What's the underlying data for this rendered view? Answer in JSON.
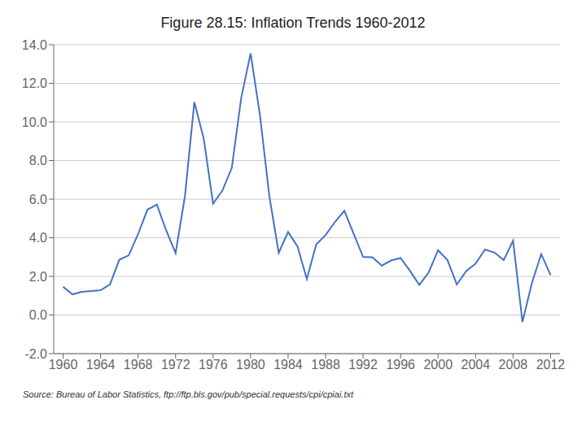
{
  "chart_data": {
    "type": "line",
    "title": "Figure 28.15: Inflation Trends 1960-2012",
    "annotations": [
      "Source: Bureau of Labor Statistics, ftp://ftp.bls.gov/pub/special.requests/cpi/cpiai.txt"
    ],
    "x": [
      1960,
      1961,
      1962,
      1963,
      1964,
      1965,
      1966,
      1967,
      1968,
      1969,
      1970,
      1971,
      1972,
      1973,
      1974,
      1975,
      1976,
      1977,
      1978,
      1979,
      1980,
      1981,
      1982,
      1983,
      1984,
      1985,
      1986,
      1987,
      1988,
      1989,
      1990,
      1991,
      1992,
      1993,
      1994,
      1995,
      1996,
      1997,
      1998,
      1999,
      2000,
      2001,
      2002,
      2003,
      2004,
      2005,
      2006,
      2007,
      2008,
      2009,
      2010,
      2011,
      2012
    ],
    "values": [
      1.46,
      1.07,
      1.2,
      1.24,
      1.28,
      1.59,
      2.86,
      3.09,
      4.19,
      5.46,
      5.72,
      4.38,
      3.21,
      6.16,
      11.03,
      9.14,
      5.77,
      6.45,
      7.63,
      11.25,
      13.55,
      10.35,
      6.16,
      3.22,
      4.3,
      3.56,
      1.86,
      3.65,
      4.14,
      4.82,
      5.4,
      4.21,
      3.01,
      2.99,
      2.56,
      2.83,
      2.95,
      2.29,
      1.56,
      2.21,
      3.36,
      2.85,
      1.58,
      2.28,
      2.66,
      3.39,
      3.24,
      2.85,
      3.85,
      -0.36,
      1.64,
      3.16,
      2.07
    ],
    "color": "#4472C4",
    "xlim": [
      1959,
      2013
    ],
    "xticks": [
      1960,
      1964,
      1968,
      1972,
      1976,
      1980,
      1984,
      1988,
      1992,
      1996,
      2000,
      2004,
      2008,
      2012
    ],
    "ylim": [
      -2.0,
      14.0
    ],
    "yticks": [
      {
        "value": -2.0,
        "label": "-2.0"
      },
      {
        "value": 0.0,
        "label": "0.0"
      },
      {
        "value": 2.0,
        "label": "2.0"
      },
      {
        "value": 4.0,
        "label": "4.0"
      },
      {
        "value": 6.0,
        "label": "6.0"
      },
      {
        "value": 8.0,
        "label": "8.0"
      },
      {
        "value": 10.0,
        "label": "10.0"
      },
      {
        "value": 12.0,
        "label": "12.0"
      },
      {
        "value": 14.0,
        "label": "14.0"
      }
    ],
    "grid": "y"
  }
}
